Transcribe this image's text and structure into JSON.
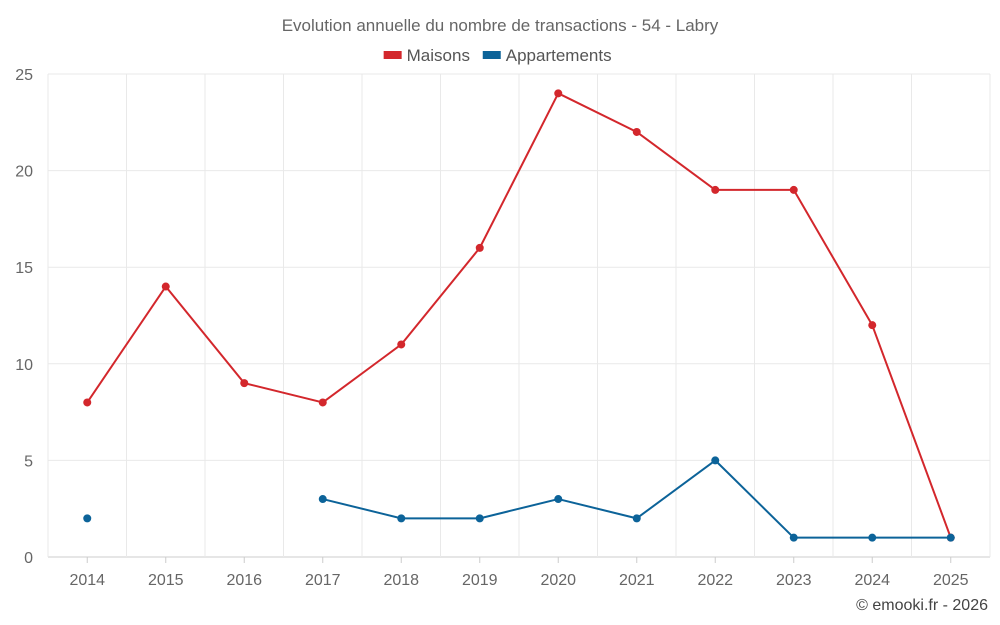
{
  "chart_data": {
    "type": "line",
    "title": "Evolution annuelle du nombre de transactions - 54 - Labry",
    "categories": [
      "2014",
      "2015",
      "2016",
      "2017",
      "2018",
      "2019",
      "2020",
      "2021",
      "2022",
      "2023",
      "2024",
      "2025"
    ],
    "series": [
      {
        "name": "Maisons",
        "color": "#d3272c",
        "values": [
          8,
          14,
          9,
          8,
          11,
          16,
          24,
          22,
          19,
          19,
          12,
          1
        ]
      },
      {
        "name": "Appartements",
        "color": "#0c6399",
        "values": [
          2,
          null,
          null,
          3,
          2,
          2,
          3,
          2,
          5,
          1,
          1,
          1
        ]
      }
    ],
    "ylim": [
      0,
      25
    ],
    "yticks": [
      0,
      5,
      10,
      15,
      20,
      25
    ],
    "xlabel": "",
    "ylabel": "",
    "grid": true,
    "legend_position": "top-center"
  },
  "credit": "© emooki.fr - 2026"
}
